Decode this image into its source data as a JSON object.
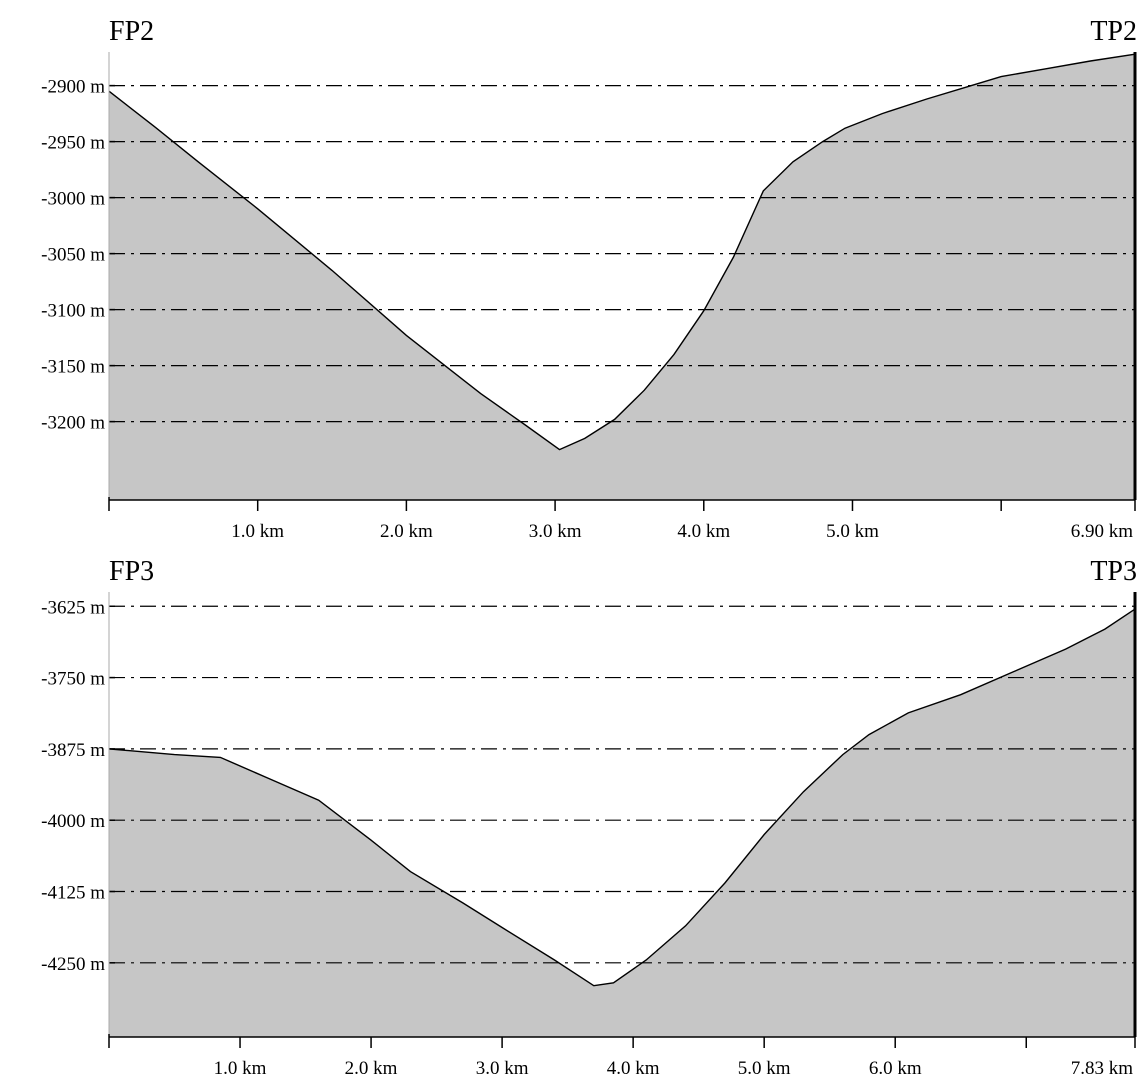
{
  "chart_data": [
    {
      "type": "area",
      "start_label": "FP2",
      "end_label": "TP2",
      "xlim": [
        0,
        6.9
      ],
      "ylim": [
        -3270,
        -2870
      ],
      "y_ticks": [
        {
          "value": -2900,
          "label": "-2900 m"
        },
        {
          "value": -2950,
          "label": "-2950 m"
        },
        {
          "value": -3000,
          "label": "-3000 m"
        },
        {
          "value": -3050,
          "label": "-3050 m"
        },
        {
          "value": -3100,
          "label": "-3100 m"
        },
        {
          "value": -3150,
          "label": "-3150 m"
        },
        {
          "value": -3200,
          "label": "-3200 m"
        }
      ],
      "x_ticks": [
        {
          "value": 1.0,
          "label": "1.0 km"
        },
        {
          "value": 2.0,
          "label": "2.0 km"
        },
        {
          "value": 3.0,
          "label": "3.0 km"
        },
        {
          "value": 4.0,
          "label": "4.0 km"
        },
        {
          "value": 5.0,
          "label": "5.0 km"
        },
        {
          "value": 6.0,
          "label": ""
        },
        {
          "value": 6.9,
          "label": "6.90 km"
        }
      ],
      "grid": true,
      "fill_color": "#c6c6c6",
      "line_color": "#000000",
      "x": [
        0.0,
        0.3,
        0.6,
        1.0,
        1.5,
        2.0,
        2.5,
        2.8,
        3.03,
        3.2,
        3.4,
        3.6,
        3.8,
        4.0,
        4.2,
        4.4,
        4.6,
        4.8,
        4.95,
        5.2,
        5.5,
        5.8,
        6.0,
        6.3,
        6.6,
        6.9
      ],
      "y": [
        -2905,
        -2936,
        -2968,
        -3010,
        -3065,
        -3123,
        -3175,
        -3203,
        -3225,
        -3215,
        -3198,
        -3172,
        -3140,
        -3101,
        -3053,
        -2994,
        -2968,
        -2950,
        -2938,
        -2925,
        -2912,
        -2900,
        -2892,
        -2885,
        -2878,
        -2872
      ]
    },
    {
      "type": "area",
      "start_label": "FP3",
      "end_label": "TP3",
      "xlim": [
        0,
        7.83
      ],
      "ylim": [
        -4380,
        -3600
      ],
      "y_ticks": [
        {
          "value": -3625,
          "label": "-3625 m"
        },
        {
          "value": -3750,
          "label": "-3750 m"
        },
        {
          "value": -3875,
          "label": "-3875 m"
        },
        {
          "value": -4000,
          "label": "-4000 m"
        },
        {
          "value": -4125,
          "label": "-4125 m"
        },
        {
          "value": -4250,
          "label": "-4250 m"
        }
      ],
      "x_ticks": [
        {
          "value": 1.0,
          "label": "1.0 km"
        },
        {
          "value": 2.0,
          "label": "2.0 km"
        },
        {
          "value": 3.0,
          "label": "3.0 km"
        },
        {
          "value": 4.0,
          "label": "4.0 km"
        },
        {
          "value": 5.0,
          "label": "5.0 km"
        },
        {
          "value": 6.0,
          "label": "6.0 km"
        },
        {
          "value": 7.0,
          "label": ""
        },
        {
          "value": 7.83,
          "label": "7.83 km"
        }
      ],
      "grid": true,
      "fill_color": "#c6c6c6",
      "line_color": "#000000",
      "x": [
        0.0,
        0.5,
        0.85,
        1.2,
        1.6,
        2.0,
        2.3,
        2.7,
        3.0,
        3.4,
        3.7,
        3.85,
        4.1,
        4.4,
        4.7,
        5.0,
        5.3,
        5.6,
        5.8,
        6.1,
        6.5,
        6.9,
        7.3,
        7.6,
        7.83
      ],
      "y": [
        -3875,
        -3885,
        -3890,
        -3925,
        -3965,
        -4035,
        -4090,
        -4145,
        -4188,
        -4245,
        -4290,
        -4285,
        -4245,
        -4185,
        -4110,
        -4025,
        -3950,
        -3885,
        -3850,
        -3812,
        -3780,
        -3740,
        -3700,
        -3665,
        -3630
      ]
    }
  ]
}
